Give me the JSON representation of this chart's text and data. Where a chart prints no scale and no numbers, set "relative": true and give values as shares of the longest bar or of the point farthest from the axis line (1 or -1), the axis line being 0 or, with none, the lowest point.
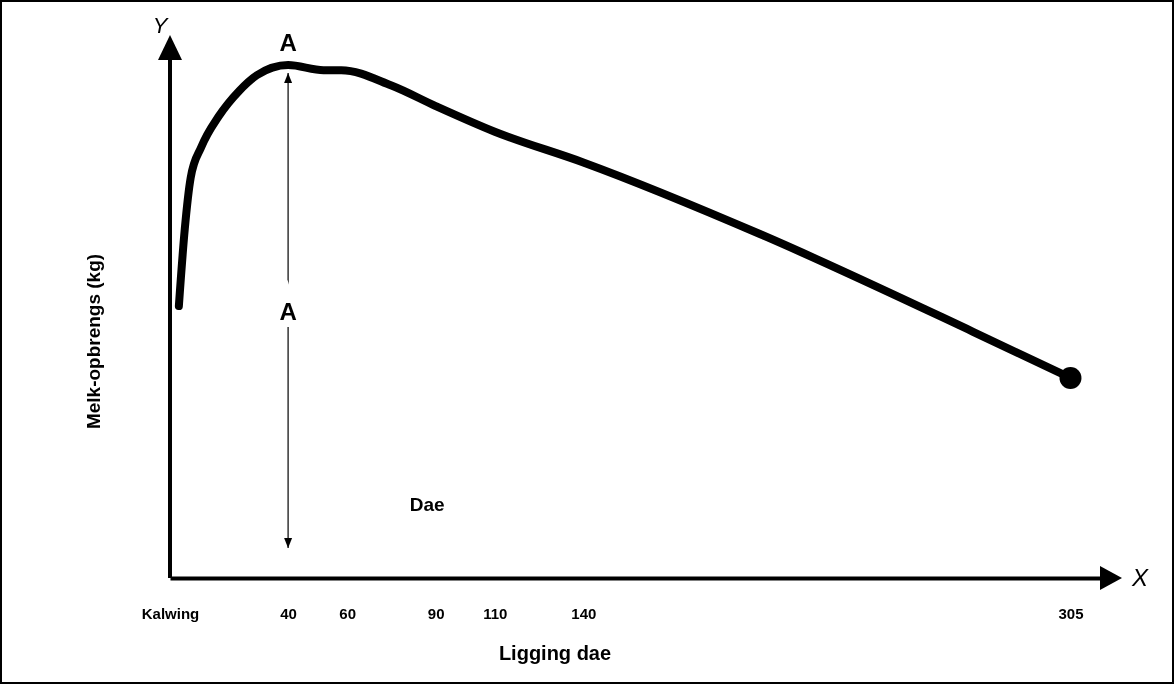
{
  "chart_data": {
    "type": "line",
    "relative": true,
    "xlabel": "Ligging dae",
    "ylabel": "Melk-opbrengs (kg)",
    "tick_labels": "x",
    "xlim": [
      0,
      315
    ],
    "xticks": [
      {
        "value": 0,
        "label": "Kalwing"
      },
      40,
      60,
      90,
      110,
      140,
      305
    ],
    "series": [
      {
        "color": "#000000",
        "x": [
          3,
          5,
          7,
          10.6,
          16.5,
          23.5,
          29.4,
          40,
          52,
          58,
          75,
          90,
          110,
          140,
          200,
          272,
          305
        ],
        "values": [
          0.53,
          0.68,
          0.78,
          0.84,
          0.9,
          0.95,
          0.98,
          1,
          0.99,
          0.99,
          0.96,
          0.92,
          0.87,
          0.81,
          0.67,
          0.48,
          0.39
        ]
      },
      {
        "type": "scatter",
        "color": "#000000",
        "x": [
          305
        ],
        "values": [
          0.39
        ]
      }
    ],
    "ref_lines": [
      {
        "axis": "x",
        "value": 40,
        "label": "A",
        "color": "#000000"
      }
    ],
    "annotations": [
      {
        "text": "A",
        "x": 40,
        "y": 1
      },
      "Dae",
      "Y",
      "X"
    ]
  }
}
